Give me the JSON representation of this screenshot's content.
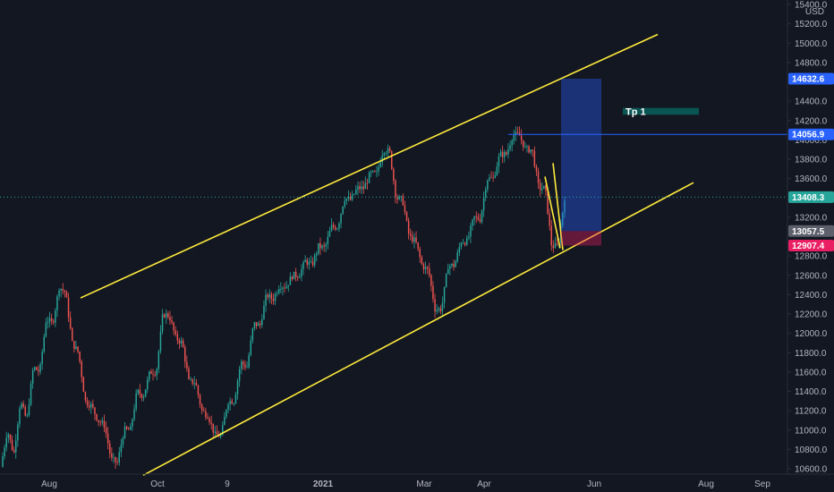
{
  "chart_data": {
    "type": "candlestick",
    "currency": "USD",
    "y_ticks": [
      10600,
      10800,
      11000,
      11200,
      11400,
      11600,
      11800,
      12000,
      12200,
      12400,
      12600,
      12800,
      13200,
      13600,
      13800,
      14000,
      14200,
      14400,
      14800,
      15000,
      15200,
      15400
    ],
    "ylim": [
      10520,
      15420
    ],
    "x_ticks": [
      "Aug",
      "Oct",
      "9",
      "2021",
      "Mar",
      "Apr",
      "Jun",
      "Aug",
      "Sep"
    ],
    "series_ohlc_approx": [
      [
        10620,
        11000
      ],
      [
        10750,
        11300
      ],
      [
        11100,
        11650
      ],
      [
        11600,
        12150
      ],
      [
        12100,
        12480
      ],
      [
        12420,
        11900
      ],
      [
        11800,
        11300
      ],
      [
        11250,
        11100
      ],
      [
        11050,
        10700
      ],
      [
        10660,
        11000
      ],
      [
        11000,
        11400
      ],
      [
        11350,
        11600
      ],
      [
        11600,
        12200
      ],
      [
        12180,
        11950
      ],
      [
        11900,
        11500
      ],
      [
        11500,
        11200
      ],
      [
        11150,
        10950
      ],
      [
        10940,
        11300
      ],
      [
        11300,
        11700
      ],
      [
        11650,
        12100
      ],
      [
        12080,
        12400
      ],
      [
        12350,
        12500
      ],
      [
        12480,
        12600
      ],
      [
        12600,
        12750
      ],
      [
        12700,
        12900
      ],
      [
        12880,
        13100
      ],
      [
        13100,
        13400
      ],
      [
        13380,
        13500
      ],
      [
        13500,
        13650
      ],
      [
        13650,
        13900
      ],
      [
        13880,
        13400
      ],
      [
        13380,
        13000
      ],
      [
        12950,
        12700
      ],
      [
        12650,
        12250
      ],
      [
        12250,
        12700
      ],
      [
        12700,
        12950
      ],
      [
        12950,
        13200
      ],
      [
        13180,
        13600
      ],
      [
        13600,
        13850
      ],
      [
        13850,
        14050
      ],
      [
        14050,
        13900
      ],
      [
        13900,
        13500
      ],
      [
        13500,
        12900
      ],
      [
        12900,
        13408
      ]
    ],
    "current_price": 13408.3,
    "price_labels": [
      {
        "value": 14632.6,
        "text": "14632.6",
        "color": "#2962ff"
      },
      {
        "value": 14056.9,
        "text": "14056.9",
        "color": "#2962ff"
      },
      {
        "value": 13408.3,
        "text": "13408.3",
        "color": "#26a69a"
      },
      {
        "value": 13057.5,
        "text": "13057.5",
        "color": "#5d606b"
      },
      {
        "value": 12907.4,
        "text": "12907.4",
        "color": "#e91e63"
      }
    ],
    "channel": {
      "upper": [
        [
          90,
          12366
        ],
        [
          735,
          15090
        ]
      ],
      "lower": [
        [
          160,
          10532
        ],
        [
          775,
          13558
        ]
      ]
    },
    "position": {
      "target": 14632.6,
      "entry": 13057.5,
      "stop": 12907.4
    },
    "annotation_label": "Tp 1",
    "colors": {
      "up": "#26a69a",
      "down": "#ef5350",
      "channel": "#ffeb3b",
      "background": "#131722",
      "grid": "#1e222d"
    }
  }
}
